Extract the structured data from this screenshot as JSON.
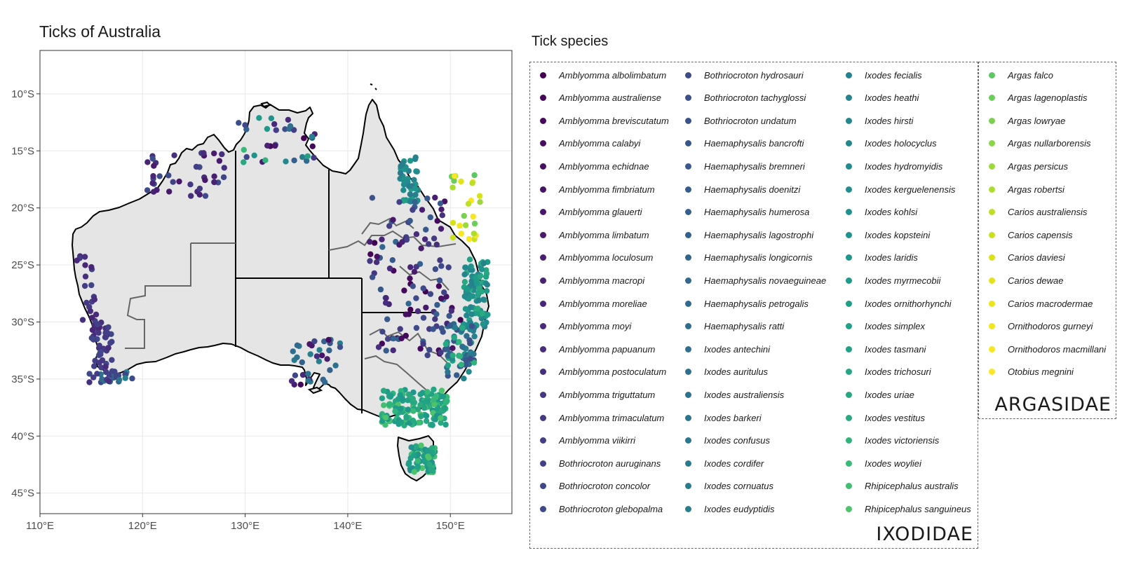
{
  "title": "Ticks of Australia",
  "legend_title": "Tick species",
  "map": {
    "x_axis_ticks": [
      "110°E",
      "120°E",
      "130°E",
      "140°E",
      "150°E"
    ],
    "y_axis_ticks": [
      "10°S",
      "15°S",
      "20°S",
      "25°S",
      "30°S",
      "35°S",
      "40°S",
      "45°S"
    ],
    "lon_range": [
      110,
      156
    ],
    "lat_range": [
      -46.8,
      -6.2
    ],
    "land_color": "#e5e5e5",
    "coastline_color": "#000000",
    "state_border_color": "#000000",
    "region_border_color": "#666666",
    "grid": true
  },
  "families": [
    {
      "name": "IXODIDAE",
      "species": [
        {
          "name": "Amblyomma albolimbatum",
          "color": "#440154"
        },
        {
          "name": "Amblyomma australiense",
          "color": "#450559"
        },
        {
          "name": "Amblyomma breviscutatum",
          "color": "#46085c"
        },
        {
          "name": "Amblyomma calabyi",
          "color": "#460c5f"
        },
        {
          "name": "Amblyomma echidnae",
          "color": "#471063"
        },
        {
          "name": "Amblyomma fimbriatum",
          "color": "#471365"
        },
        {
          "name": "Amblyomma glauerti",
          "color": "#48186a"
        },
        {
          "name": "Amblyomma limbatum",
          "color": "#481b6d"
        },
        {
          "name": "Amblyomma loculosum",
          "color": "#481f70"
        },
        {
          "name": "Amblyomma macropi",
          "color": "#482273"
        },
        {
          "name": "Amblyomma moreliae",
          "color": "#482576"
        },
        {
          "name": "Amblyomma moyi",
          "color": "#472a7a"
        },
        {
          "name": "Amblyomma papuanum",
          "color": "#472d7b"
        },
        {
          "name": "Amblyomma postoculatum",
          "color": "#46307e"
        },
        {
          "name": "Amblyomma triguttatum",
          "color": "#453781"
        },
        {
          "name": "Amblyomma trimaculatum",
          "color": "#443a83"
        },
        {
          "name": "Amblyomma viikirri",
          "color": "#433e85"
        },
        {
          "name": "Bothriocroton auruginans",
          "color": "#424086"
        },
        {
          "name": "Bothriocroton concolor",
          "color": "#404588"
        },
        {
          "name": "Bothriocroton glebopalma",
          "color": "#3f4889"
        },
        {
          "name": "Bothriocroton hydrosauri",
          "color": "#3e4c8a"
        },
        {
          "name": "Bothriocroton tachyglossi",
          "color": "#3c4f8a"
        },
        {
          "name": "Bothriocroton undatum",
          "color": "#3b528b"
        },
        {
          "name": "Haemaphysalis bancrofti",
          "color": "#39568c"
        },
        {
          "name": "Haemaphysalis bremneri",
          "color": "#38598c"
        },
        {
          "name": "Haemaphysalis doenitzi",
          "color": "#365c8d"
        },
        {
          "name": "Haemaphysalis humerosa",
          "color": "#355f8d"
        },
        {
          "name": "Haemaphysalis lagostrophi",
          "color": "#34618d"
        },
        {
          "name": "Haemaphysalis longicornis",
          "color": "#32648e"
        },
        {
          "name": "Haemaphysalis novaeguineae",
          "color": "#31688e"
        },
        {
          "name": "Haemaphysalis petrogalis",
          "color": "#306a8e"
        },
        {
          "name": "Haemaphysalis ratti",
          "color": "#2f6d8e"
        },
        {
          "name": "Ixodes antechini",
          "color": "#2e6f8e"
        },
        {
          "name": "Ixodes auritulus",
          "color": "#2d718e"
        },
        {
          "name": "Ixodes australiensis",
          "color": "#2c738e"
        },
        {
          "name": "Ixodes barkeri",
          "color": "#2b758e"
        },
        {
          "name": "Ixodes confusus",
          "color": "#2a788e"
        },
        {
          "name": "Ixodes cordifer",
          "color": "#297a8e"
        },
        {
          "name": "Ixodes cornuatus",
          "color": "#287c8e"
        },
        {
          "name": "Ixodes eudyptidis",
          "color": "#277f8e"
        },
        {
          "name": "Ixodes fecialis",
          "color": "#26818e"
        },
        {
          "name": "Ixodes heathi",
          "color": "#25838e"
        },
        {
          "name": "Ixodes hirsti",
          "color": "#24868e"
        },
        {
          "name": "Ixodes holocyclus",
          "color": "#23888e"
        },
        {
          "name": "Ixodes hydromyidis",
          "color": "#228b8d"
        },
        {
          "name": "Ixodes kerguelenensis",
          "color": "#218e8d"
        },
        {
          "name": "Ixodes kohlsi",
          "color": "#20908d"
        },
        {
          "name": "Ixodes kopsteini",
          "color": "#1f938c"
        },
        {
          "name": "Ixodes laridis",
          "color": "#1f958b"
        },
        {
          "name": "Ixodes myrmecobii",
          "color": "#1e9a8a"
        },
        {
          "name": "Ixodes ornithorhynchi",
          "color": "#1f9d89"
        },
        {
          "name": "Ixodes simplex",
          "color": "#20a086"
        },
        {
          "name": "Ixodes tasmani",
          "color": "#22a285"
        },
        {
          "name": "Ixodes trichosuri",
          "color": "#25a584"
        },
        {
          "name": "Ixodes uriae",
          "color": "#28a882"
        },
        {
          "name": "Ixodes vestitus",
          "color": "#2ba97f"
        },
        {
          "name": "Ixodes victoriensis",
          "color": "#2fb47c"
        },
        {
          "name": "Ixodes woyliei",
          "color": "#38b977"
        },
        {
          "name": "Rhipicephalus australis",
          "color": "#42be71"
        },
        {
          "name": "Rhipicephalus sanguineus",
          "color": "#4ec36b"
        }
      ]
    },
    {
      "name": "ARGASIDAE",
      "species": [
        {
          "name": "Argas falco",
          "color": "#5cc863"
        },
        {
          "name": "Argas lagenoplastis",
          "color": "#6ccd5a"
        },
        {
          "name": "Argas lowryae",
          "color": "#7ad151"
        },
        {
          "name": "Argas nullarborensis",
          "color": "#8bd646"
        },
        {
          "name": "Argas persicus",
          "color": "#9bd93c"
        },
        {
          "name": "Argas robertsi",
          "color": "#addc30"
        },
        {
          "name": "Carios australiensis",
          "color": "#bddf26"
        },
        {
          "name": "Carios capensis",
          "color": "#c8e020"
        },
        {
          "name": "Carios daviesi",
          "color": "#d8e219"
        },
        {
          "name": "Carios dewae",
          "color": "#e2e418"
        },
        {
          "name": "Carios macrodermae",
          "color": "#ece51b"
        },
        {
          "name": "Ornithodoros gurneyi",
          "color": "#f1e51d"
        },
        {
          "name": "Ornithodoros macmillani",
          "color": "#f8e621"
        },
        {
          "name": "Otobius megnini",
          "color": "#fde725"
        }
      ]
    }
  ]
}
